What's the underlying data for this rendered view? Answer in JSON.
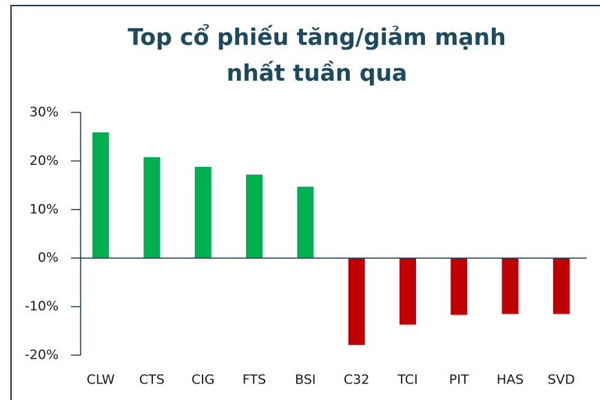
{
  "chart_data": {
    "type": "bar",
    "title": "Top cổ phiếu tăng/giảm mạnh nhất tuần qua",
    "categories": [
      "CLW",
      "CTS",
      "CIG",
      "FTS",
      "BSI",
      "C32",
      "TCI",
      "PIT",
      "HAS",
      "SVD"
    ],
    "values": [
      25.9,
      20.8,
      18.8,
      17.2,
      14.7,
      -17.9,
      -13.7,
      -11.7,
      -11.5,
      -11.5
    ],
    "colors": [
      "#00b050",
      "#00b050",
      "#00b050",
      "#00b050",
      "#00b050",
      "#c00000",
      "#c00000",
      "#c00000",
      "#c00000",
      "#c00000"
    ],
    "ylim": [
      -20,
      30
    ],
    "yticks": [
      {
        "value": -20,
        "label": "-20%"
      },
      {
        "value": -10,
        "label": "-10%"
      },
      {
        "value": 0,
        "label": "0%"
      },
      {
        "value": 10,
        "label": "10%"
      },
      {
        "value": 20,
        "label": "20%"
      },
      {
        "value": 30,
        "label": "30%"
      }
    ],
    "grid": false
  }
}
